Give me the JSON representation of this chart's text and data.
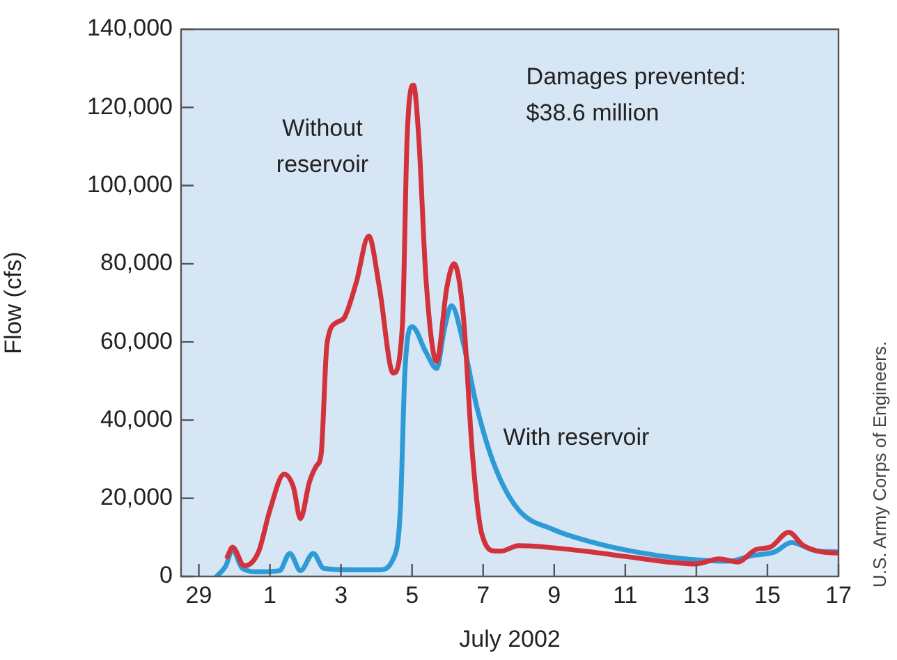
{
  "chart_data": {
    "type": "line",
    "xlabel": "July 2002",
    "ylabel": "Flow (cfs)",
    "xlim": [
      "2002-06-28T12:00",
      "2002-07-17"
    ],
    "xticks": [
      {
        "value": "2002-06-29",
        "label": "29"
      },
      {
        "value": "2002-07-01",
        "label": "1"
      },
      {
        "value": "2002-07-03",
        "label": "3"
      },
      {
        "value": "2002-07-05",
        "label": "5"
      },
      {
        "value": "2002-07-07",
        "label": "7"
      },
      {
        "value": "2002-07-09",
        "label": "9"
      },
      {
        "value": "2002-07-11",
        "label": "11"
      },
      {
        "value": "2002-07-13",
        "label": "13"
      },
      {
        "value": "2002-07-15",
        "label": "15"
      },
      {
        "value": "2002-07-17",
        "label": "17"
      }
    ],
    "ylim": [
      0,
      140000
    ],
    "yticks": [
      0,
      {
        "value": 20000,
        "label": "20,000"
      },
      {
        "value": 40000,
        "label": "40,000"
      },
      {
        "value": 60000,
        "label": "60,000"
      },
      {
        "value": 80000,
        "label": "80,000"
      },
      {
        "value": 100000,
        "label": "100,000"
      },
      {
        "value": 120000,
        "label": "120,000"
      },
      {
        "value": 140000,
        "label": "140,000"
      }
    ],
    "grid": false,
    "legend": false,
    "marker": "none",
    "line_style": "solid",
    "annotations": [
      "Damages prevented:\n$38.6 million",
      "U.S. Army Corps of Engineers."
    ],
    "series": [
      {
        "name": "Without reservoir",
        "color": "#d2323c",
        "x": [
          "2002-06-29T19:12",
          "2002-06-29T22:48",
          "2002-06-30T06:43",
          "2002-06-30T16:19",
          "2002-07-01T00:00",
          "2002-07-01T09:36",
          "2002-07-01T15:50",
          "2002-07-01T20:38",
          "2002-07-02T02:38",
          "2002-07-02T07:26",
          "2002-07-02T10:34",
          "2002-07-02T14:38",
          "2002-07-02T21:36",
          "2002-07-03T02:24",
          "2002-07-03T10:19",
          "2002-07-03T18:43",
          "2002-07-04T01:55",
          "2002-07-04T11:17",
          "2002-07-04T17:31",
          "2002-07-04T20:38",
          "2002-07-05T00:58",
          "2002-07-05T04:34",
          "2002-07-05T09:22",
          "2002-07-05T16:34",
          "2002-07-05T23:31",
          "2002-07-06T04:19",
          "2002-07-06T10:34",
          "2002-07-06T16:48",
          "2002-07-06T23:02",
          "2002-07-07T08:24",
          "2002-07-07T12:00",
          "2002-07-08T00:00",
          "2002-07-09T20:10",
          "2002-07-11T00:29",
          "2002-07-12T23:31",
          "2002-07-13T15:22",
          "2002-07-14T03:50",
          "2002-07-14T16:19",
          "2002-07-15T01:55",
          "2002-07-15T14:24",
          "2002-07-16T00:00",
          "2002-07-16T12:29",
          "2002-07-16T23:31"
        ],
        "values": [
          5000,
          7500,
          2700,
          6300,
          17000,
          26200,
          22900,
          14800,
          24100,
          28300,
          31200,
          59800,
          65100,
          66300,
          75200,
          87100,
          74000,
          52000,
          64500,
          112000,
          125700,
          112000,
          76300,
          55000,
          74000,
          80000,
          66900,
          31200,
          11000,
          6500,
          6500,
          7900,
          6500,
          5100,
          3200,
          4500,
          3700,
          6900,
          7500,
          11300,
          8000,
          6300,
          6000
        ]
      },
      {
        "name": "With reservoir",
        "color": "#2e9ad6",
        "x": [
          "2002-06-29T12:00",
          "2002-06-29T18:14",
          "2002-06-29T22:48",
          "2002-06-30T05:17",
          "2002-06-30T16:19",
          "2002-07-01T06:29",
          "2002-07-01T13:26",
          "2002-07-01T20:38",
          "2002-07-02T05:17",
          "2002-07-02T12:14",
          "2002-07-03T06:58",
          "2002-07-04T01:55",
          "2002-07-04T11:17",
          "2002-07-04T16:05",
          "2002-07-04T19:12",
          "2002-07-05T00:00",
          "2002-07-05T09:22",
          "2002-07-05T16:34",
          "2002-07-05T21:50",
          "2002-07-06T02:38",
          "2002-07-06T10:34",
          "2002-07-06T19:55",
          "2002-07-07T08:24",
          "2002-07-08T00:00",
          "2002-07-08T22:05",
          "2002-07-10T02:24",
          "2002-07-11T06:43",
          "2002-07-12T14:10",
          "2002-07-13T21:36",
          "2002-07-14T13:12",
          "2002-07-15T05:02",
          "2002-07-15T16:05",
          "2002-07-16T09:22",
          "2002-07-16T23:31"
        ],
        "values": [
          0,
          2700,
          6900,
          2100,
          1200,
          1500,
          5900,
          1500,
          5900,
          2100,
          1700,
          1700,
          4500,
          17000,
          52600,
          63900,
          57400,
          53200,
          63300,
          69300,
          59800,
          43100,
          27700,
          17000,
          12200,
          8700,
          6300,
          4600,
          3900,
          5300,
          6300,
          8700,
          6500,
          6300
        ]
      }
    ]
  }
}
